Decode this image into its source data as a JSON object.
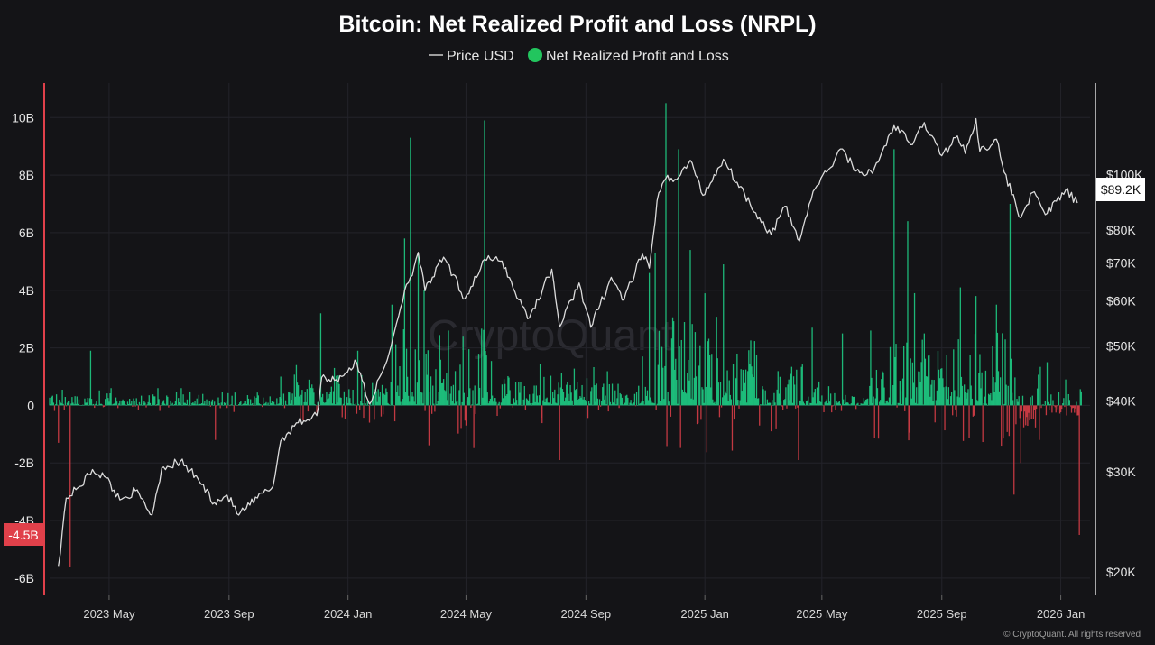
{
  "chart_data": {
    "type": "bar",
    "title": "Bitcoin: Net Realized Profit and Loss (NRPL)",
    "legend": [
      {
        "name": "Price USD",
        "color": "#d9d9d9",
        "symbol": "line"
      },
      {
        "name": "Net Realized Profit and Loss",
        "color": "#22c55e",
        "symbol": "dot"
      }
    ],
    "legend_placement": "top-center",
    "grid": true,
    "colors": {
      "positive": "#1fd58a",
      "negative": "#e0404a",
      "price": "#dcdcdc"
    },
    "x_range": [
      "2023-03-01",
      "2026-01-31"
    ],
    "x_ticks": [
      {
        "date": "2023-05-01",
        "label": "2023 May"
      },
      {
        "date": "2023-09-01",
        "label": "2023 Sep"
      },
      {
        "date": "2024-01-01",
        "label": "2024 Jan"
      },
      {
        "date": "2024-05-01",
        "label": "2024 May"
      },
      {
        "date": "2024-09-01",
        "label": "2024 Sep"
      },
      {
        "date": "2025-01-01",
        "label": "2025 Jan"
      },
      {
        "date": "2025-05-01",
        "label": "2025 May"
      },
      {
        "date": "2025-09-01",
        "label": "2025 Sep"
      },
      {
        "date": "2026-01-01",
        "label": "2026 Jan"
      }
    ],
    "y_left": {
      "unit": "USD",
      "ylim": [
        -6.6,
        11.2
      ],
      "ticks": [
        {
          "value": 10,
          "label": "10B"
        },
        {
          "value": 8,
          "label": "8B"
        },
        {
          "value": 6,
          "label": "6B"
        },
        {
          "value": 4,
          "label": "4B"
        },
        {
          "value": 2,
          "label": "2B"
        },
        {
          "value": 0,
          "label": "0"
        },
        {
          "value": -2,
          "label": "-2B"
        },
        {
          "value": -4,
          "label": "-4B"
        },
        {
          "value": -6,
          "label": "-6B"
        }
      ]
    },
    "y_right": {
      "scale": "log",
      "ylim": [
        18200,
        145000
      ],
      "ticks": [
        {
          "value": 100000,
          "label": "$100K"
        },
        {
          "value": 80000,
          "label": "$80K"
        },
        {
          "value": 70000,
          "label": "$70K"
        },
        {
          "value": 60000,
          "label": "$60K"
        },
        {
          "value": 50000,
          "label": "$50K"
        },
        {
          "value": 40000,
          "label": "$40K"
        },
        {
          "value": 30000,
          "label": "$30K"
        },
        {
          "value": 20000,
          "label": "$20K"
        }
      ]
    },
    "current_value_tags": {
      "nrpl": {
        "value": -4.5,
        "label": "-4.5B"
      },
      "price": {
        "value": 89200,
        "label": "$89.2K"
      }
    },
    "price_series": {
      "name": "Price USD",
      "points": [
        [
          "2023-03-10",
          20500
        ],
        [
          "2023-03-18",
          27000
        ],
        [
          "2023-04-01",
          28300
        ],
        [
          "2023-04-14",
          30300
        ],
        [
          "2023-04-28",
          29300
        ],
        [
          "2023-05-12",
          26800
        ],
        [
          "2023-05-28",
          27800
        ],
        [
          "2023-06-14",
          25200
        ],
        [
          "2023-06-24",
          30500
        ],
        [
          "2023-07-13",
          31300
        ],
        [
          "2023-07-31",
          29200
        ],
        [
          "2023-08-17",
          26500
        ],
        [
          "2023-08-30",
          27300
        ],
        [
          "2023-09-11",
          25200
        ],
        [
          "2023-09-30",
          27000
        ],
        [
          "2023-10-16",
          28300
        ],
        [
          "2023-10-24",
          34000
        ],
        [
          "2023-11-09",
          36600
        ],
        [
          "2023-11-30",
          37700
        ],
        [
          "2023-12-05",
          44000
        ],
        [
          "2023-12-20",
          43600
        ],
        [
          "2024-01-10",
          46700
        ],
        [
          "2024-01-23",
          39500
        ],
        [
          "2024-02-10",
          47100
        ],
        [
          "2024-02-28",
          62500
        ],
        [
          "2024-03-05",
          66000
        ],
        [
          "2024-03-13",
          73000
        ],
        [
          "2024-03-20",
          62500
        ],
        [
          "2024-04-08",
          71600
        ],
        [
          "2024-04-30",
          60500
        ],
        [
          "2024-05-20",
          71000
        ],
        [
          "2024-06-07",
          70500
        ],
        [
          "2024-06-24",
          60300
        ],
        [
          "2024-07-05",
          56000
        ],
        [
          "2024-07-28",
          68200
        ],
        [
          "2024-08-05",
          54000
        ],
        [
          "2024-08-25",
          64500
        ],
        [
          "2024-09-06",
          53900
        ],
        [
          "2024-09-27",
          66000
        ],
        [
          "2024-10-10",
          60200
        ],
        [
          "2024-10-29",
          72500
        ],
        [
          "2024-11-05",
          68500
        ],
        [
          "2024-11-13",
          90000
        ],
        [
          "2024-11-22",
          98500
        ],
        [
          "2024-12-05",
          99000
        ],
        [
          "2024-12-17",
          106000
        ],
        [
          "2024-12-30",
          92000
        ],
        [
          "2025-01-20",
          106500
        ],
        [
          "2025-02-03",
          97000
        ],
        [
          "2025-02-26",
          84000
        ],
        [
          "2025-03-10",
          78500
        ],
        [
          "2025-03-24",
          88000
        ],
        [
          "2025-04-08",
          76500
        ],
        [
          "2025-04-22",
          93500
        ],
        [
          "2025-05-22",
          111000
        ],
        [
          "2025-06-05",
          101500
        ],
        [
          "2025-06-22",
          100500
        ],
        [
          "2025-07-14",
          122000
        ],
        [
          "2025-08-02",
          113000
        ],
        [
          "2025-08-14",
          123500
        ],
        [
          "2025-09-01",
          108000
        ],
        [
          "2025-09-17",
          117000
        ],
        [
          "2025-09-25",
          109000
        ],
        [
          "2025-10-06",
          125500
        ],
        [
          "2025-10-10",
          110000
        ],
        [
          "2025-10-27",
          115500
        ],
        [
          "2025-11-04",
          101000
        ],
        [
          "2025-11-21",
          84000
        ],
        [
          "2025-12-03",
          93000
        ],
        [
          "2025-12-18",
          85500
        ],
        [
          "2026-01-06",
          94000
        ],
        [
          "2026-01-18",
          89200
        ]
      ]
    },
    "nrpl_spikes": [
      [
        "2023-03-10",
        -1.3
      ],
      [
        "2023-03-22",
        -5.6
      ],
      [
        "2023-04-12",
        1.9
      ],
      [
        "2023-05-03",
        0.6
      ],
      [
        "2023-06-20",
        0.6
      ],
      [
        "2023-07-14",
        0.6
      ],
      [
        "2023-08-18",
        -1.2
      ],
      [
        "2023-10-24",
        1.0
      ],
      [
        "2023-11-09",
        1.4
      ],
      [
        "2023-12-04",
        3.2
      ],
      [
        "2023-12-18",
        1.3
      ],
      [
        "2024-01-11",
        1.9
      ],
      [
        "2024-01-23",
        -0.6
      ],
      [
        "2024-02-15",
        3.5
      ],
      [
        "2024-02-28",
        5.8
      ],
      [
        "2024-03-05",
        9.3
      ],
      [
        "2024-03-13",
        5.3
      ],
      [
        "2024-03-19",
        4.0
      ],
      [
        "2024-04-13",
        2.6
      ],
      [
        "2024-05-01",
        -0.7
      ],
      [
        "2024-05-20",
        9.9
      ],
      [
        "2024-06-24",
        0.8
      ],
      [
        "2024-08-05",
        -1.9
      ],
      [
        "2024-09-10",
        0.7
      ],
      [
        "2024-10-29",
        1.7
      ],
      [
        "2024-11-05",
        4.6
      ],
      [
        "2024-11-11",
        5.3
      ],
      [
        "2024-11-22",
        10.5
      ],
      [
        "2024-12-05",
        8.9
      ],
      [
        "2024-12-17",
        5.4
      ],
      [
        "2025-01-20",
        4.9
      ],
      [
        "2025-02-26",
        -0.7
      ],
      [
        "2025-03-10",
        -0.9
      ],
      [
        "2025-03-28",
        0.9
      ],
      [
        "2025-04-07",
        -1.9
      ],
      [
        "2025-04-21",
        2.7
      ],
      [
        "2025-05-22",
        2.5
      ],
      [
        "2025-06-20",
        2.6
      ],
      [
        "2025-07-14",
        8.9
      ],
      [
        "2025-07-28",
        6.4
      ],
      [
        "2025-08-04",
        3.9
      ],
      [
        "2025-08-14",
        2.5
      ],
      [
        "2025-09-20",
        4.1
      ],
      [
        "2025-10-06",
        3.8
      ],
      [
        "2025-10-27",
        3.5
      ],
      [
        "2025-11-01",
        -1.4
      ],
      [
        "2025-11-10",
        7.0
      ],
      [
        "2025-11-14",
        -3.1
      ],
      [
        "2025-11-21",
        -2.0
      ],
      [
        "2025-12-10",
        -1.2
      ],
      [
        "2025-12-18",
        1.5
      ],
      [
        "2026-01-06",
        0.9
      ],
      [
        "2026-01-20",
        -4.5
      ]
    ]
  },
  "watermark": "CryptoQuant",
  "copyright": "© CryptoQuant. All rights reserved"
}
